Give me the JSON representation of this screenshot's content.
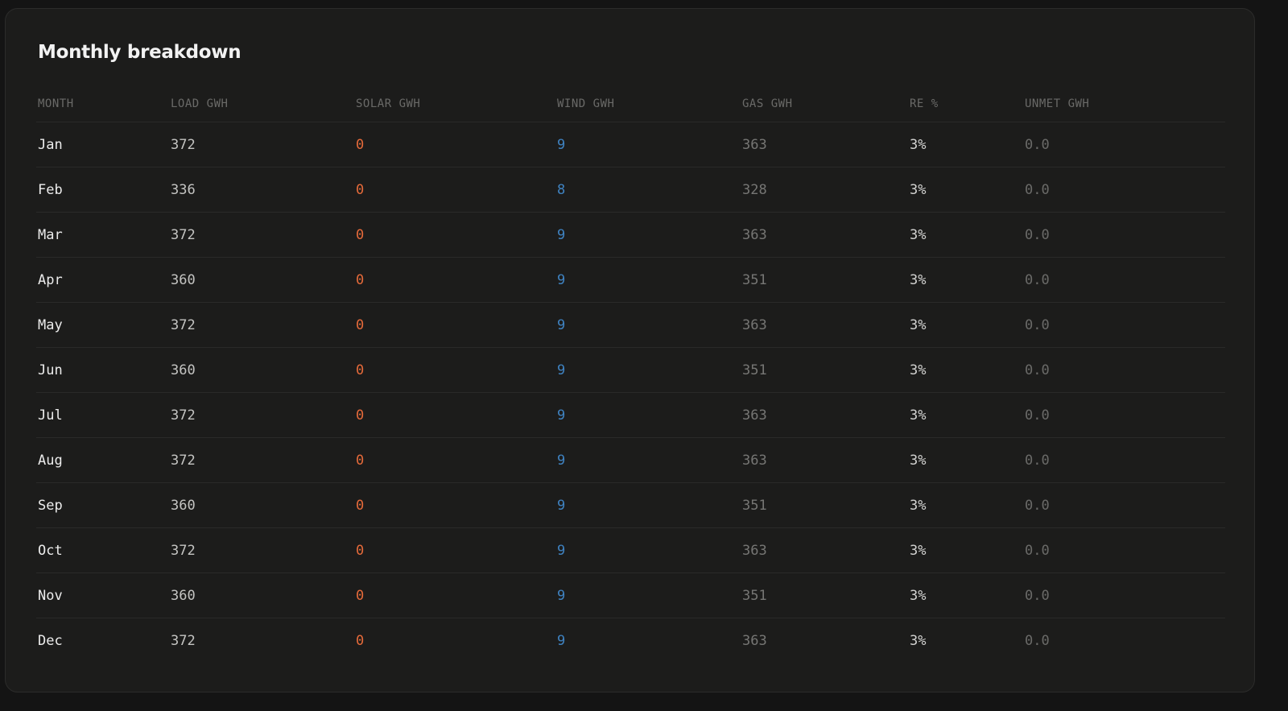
{
  "header": {
    "title": "Monthly breakdown"
  },
  "table": {
    "columns": [
      "MONTH",
      "LOAD GWH",
      "SOLAR GWH",
      "WIND GWH",
      "GAS GWH",
      "RE %",
      "UNMET GWH"
    ],
    "rows": [
      [
        "Jan",
        "372",
        "0",
        "9",
        "363",
        "3%",
        "0.0"
      ],
      [
        "Feb",
        "336",
        "0",
        "8",
        "328",
        "3%",
        "0.0"
      ],
      [
        "Mar",
        "372",
        "0",
        "9",
        "363",
        "3%",
        "0.0"
      ],
      [
        "Apr",
        "360",
        "0",
        "9",
        "351",
        "3%",
        "0.0"
      ],
      [
        "May",
        "372",
        "0",
        "9",
        "363",
        "3%",
        "0.0"
      ],
      [
        "Jun",
        "360",
        "0",
        "9",
        "351",
        "3%",
        "0.0"
      ],
      [
        "Jul",
        "372",
        "0",
        "9",
        "363",
        "3%",
        "0.0"
      ],
      [
        "Aug",
        "372",
        "0",
        "9",
        "363",
        "3%",
        "0.0"
      ],
      [
        "Sep",
        "360",
        "0",
        "9",
        "351",
        "3%",
        "0.0"
      ],
      [
        "Oct",
        "372",
        "0",
        "9",
        "363",
        "3%",
        "0.0"
      ],
      [
        "Nov",
        "360",
        "0",
        "9",
        "351",
        "3%",
        "0.0"
      ],
      [
        "Dec",
        "372",
        "0",
        "9",
        "363",
        "3%",
        "0.0"
      ]
    ]
  }
}
